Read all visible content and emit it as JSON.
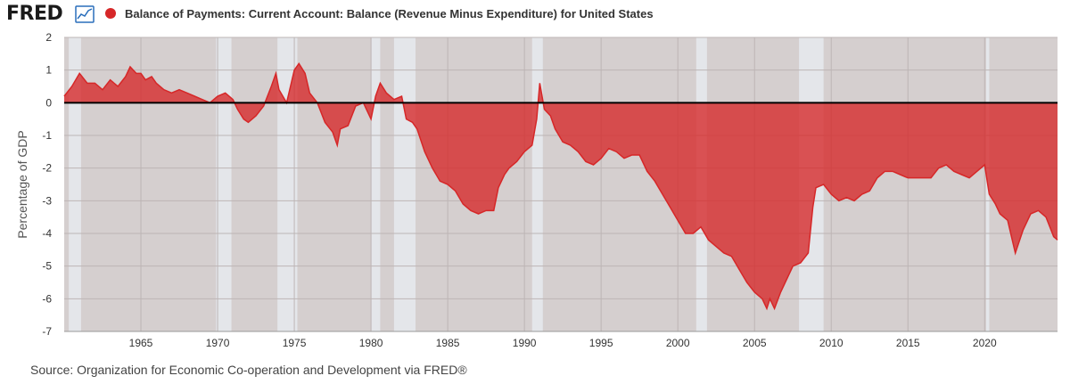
{
  "header": {
    "logo_text": "FRED",
    "logo_icon": "line-chart-icon",
    "series_title": "Balance of Payments: Current Account: Balance (Revenue Minus Expenditure) for United States"
  },
  "footer": {
    "source": "Source: Organization for Economic Co-operation and Development via FRED®"
  },
  "chart_data": {
    "type": "area",
    "title": "Balance of Payments: Current Account: Balance (Revenue Minus Expenditure) for United States",
    "xlabel": "",
    "ylabel": "Percentage of GDP",
    "xlim": [
      1960.0,
      2024.75
    ],
    "ylim": [
      -7,
      2
    ],
    "x_ticks": [
      1965,
      1970,
      1975,
      1980,
      1985,
      1990,
      1995,
      2000,
      2005,
      2010,
      2015,
      2020
    ],
    "y_ticks": [
      2,
      1,
      0,
      -1,
      -2,
      -3,
      -4,
      -5,
      -6,
      -7
    ],
    "grid": true,
    "colors": {
      "series": "#d62728",
      "recession": "#e4e6ea",
      "plot_bg": "#d5cfcf",
      "zero_line": "#000000"
    },
    "recessions": [
      [
        1960.3,
        1961.1
      ],
      [
        1969.9,
        1970.9
      ],
      [
        1973.9,
        1975.2
      ],
      [
        1980.0,
        1980.6
      ],
      [
        1981.5,
        1982.9
      ],
      [
        1990.5,
        1991.2
      ],
      [
        2001.2,
        2001.9
      ],
      [
        2007.9,
        2009.5
      ],
      [
        2020.1,
        2020.3
      ]
    ],
    "series": [
      {
        "name": "",
        "points": [
          [
            1960.0,
            0.2
          ],
          [
            1960.5,
            0.5
          ],
          [
            1961.0,
            0.9
          ],
          [
            1961.5,
            0.6
          ],
          [
            1962.0,
            0.6
          ],
          [
            1962.5,
            0.4
          ],
          [
            1963.0,
            0.7
          ],
          [
            1963.5,
            0.5
          ],
          [
            1964.0,
            0.8
          ],
          [
            1964.3,
            1.1
          ],
          [
            1964.7,
            0.9
          ],
          [
            1965.0,
            0.9
          ],
          [
            1965.3,
            0.7
          ],
          [
            1965.7,
            0.8
          ],
          [
            1966.0,
            0.6
          ],
          [
            1966.5,
            0.4
          ],
          [
            1967.0,
            0.3
          ],
          [
            1967.5,
            0.4
          ],
          [
            1968.0,
            0.3
          ],
          [
            1968.5,
            0.2
          ],
          [
            1969.0,
            0.1
          ],
          [
            1969.5,
            0.0
          ],
          [
            1970.0,
            0.2
          ],
          [
            1970.5,
            0.3
          ],
          [
            1971.0,
            0.1
          ],
          [
            1971.3,
            -0.2
          ],
          [
            1971.7,
            -0.5
          ],
          [
            1972.0,
            -0.6
          ],
          [
            1972.5,
            -0.4
          ],
          [
            1973.0,
            -0.1
          ],
          [
            1973.5,
            0.5
          ],
          [
            1973.8,
            0.9
          ],
          [
            1974.0,
            0.4
          ],
          [
            1974.5,
            0.0
          ],
          [
            1975.0,
            1.0
          ],
          [
            1975.3,
            1.2
          ],
          [
            1975.7,
            0.9
          ],
          [
            1976.0,
            0.3
          ],
          [
            1976.5,
            0.0
          ],
          [
            1977.0,
            -0.6
          ],
          [
            1977.5,
            -0.9
          ],
          [
            1977.8,
            -1.3
          ],
          [
            1978.0,
            -0.8
          ],
          [
            1978.5,
            -0.7
          ],
          [
            1979.0,
            -0.1
          ],
          [
            1979.5,
            0.0
          ],
          [
            1980.0,
            -0.5
          ],
          [
            1980.3,
            0.2
          ],
          [
            1980.6,
            0.6
          ],
          [
            1981.0,
            0.3
          ],
          [
            1981.5,
            0.1
          ],
          [
            1982.0,
            0.2
          ],
          [
            1982.3,
            -0.5
          ],
          [
            1982.7,
            -0.6
          ],
          [
            1983.0,
            -0.8
          ],
          [
            1983.5,
            -1.5
          ],
          [
            1984.0,
            -2.0
          ],
          [
            1984.5,
            -2.4
          ],
          [
            1985.0,
            -2.5
          ],
          [
            1985.5,
            -2.7
          ],
          [
            1986.0,
            -3.1
          ],
          [
            1986.5,
            -3.3
          ],
          [
            1987.0,
            -3.4
          ],
          [
            1987.5,
            -3.3
          ],
          [
            1988.0,
            -3.3
          ],
          [
            1988.3,
            -2.6
          ],
          [
            1988.7,
            -2.2
          ],
          [
            1989.0,
            -2.0
          ],
          [
            1989.5,
            -1.8
          ],
          [
            1990.0,
            -1.5
          ],
          [
            1990.5,
            -1.3
          ],
          [
            1990.8,
            -0.5
          ],
          [
            1991.0,
            0.6
          ],
          [
            1991.3,
            -0.2
          ],
          [
            1991.7,
            -0.4
          ],
          [
            1992.0,
            -0.8
          ],
          [
            1992.5,
            -1.2
          ],
          [
            1993.0,
            -1.3
          ],
          [
            1993.5,
            -1.5
          ],
          [
            1994.0,
            -1.8
          ],
          [
            1994.5,
            -1.9
          ],
          [
            1995.0,
            -1.7
          ],
          [
            1995.5,
            -1.4
          ],
          [
            1996.0,
            -1.5
          ],
          [
            1996.5,
            -1.7
          ],
          [
            1997.0,
            -1.6
          ],
          [
            1997.5,
            -1.6
          ],
          [
            1998.0,
            -2.1
          ],
          [
            1998.5,
            -2.4
          ],
          [
            1999.0,
            -2.8
          ],
          [
            1999.5,
            -3.2
          ],
          [
            2000.0,
            -3.6
          ],
          [
            2000.5,
            -4.0
          ],
          [
            2001.0,
            -4.0
          ],
          [
            2001.5,
            -3.8
          ],
          [
            2002.0,
            -4.2
          ],
          [
            2002.5,
            -4.4
          ],
          [
            2003.0,
            -4.6
          ],
          [
            2003.5,
            -4.7
          ],
          [
            2004.0,
            -5.1
          ],
          [
            2004.5,
            -5.5
          ],
          [
            2005.0,
            -5.8
          ],
          [
            2005.5,
            -6.0
          ],
          [
            2005.8,
            -6.3
          ],
          [
            2006.0,
            -6.0
          ],
          [
            2006.3,
            -6.3
          ],
          [
            2006.7,
            -5.8
          ],
          [
            2007.0,
            -5.5
          ],
          [
            2007.5,
            -5.0
          ],
          [
            2008.0,
            -4.9
          ],
          [
            2008.5,
            -4.6
          ],
          [
            2008.8,
            -3.2
          ],
          [
            2009.0,
            -2.6
          ],
          [
            2009.5,
            -2.5
          ],
          [
            2010.0,
            -2.8
          ],
          [
            2010.5,
            -3.0
          ],
          [
            2011.0,
            -2.9
          ],
          [
            2011.5,
            -3.0
          ],
          [
            2012.0,
            -2.8
          ],
          [
            2012.5,
            -2.7
          ],
          [
            2013.0,
            -2.3
          ],
          [
            2013.5,
            -2.1
          ],
          [
            2014.0,
            -2.1
          ],
          [
            2014.5,
            -2.2
          ],
          [
            2015.0,
            -2.3
          ],
          [
            2015.5,
            -2.3
          ],
          [
            2016.0,
            -2.3
          ],
          [
            2016.5,
            -2.3
          ],
          [
            2017.0,
            -2.0
          ],
          [
            2017.5,
            -1.9
          ],
          [
            2018.0,
            -2.1
          ],
          [
            2018.5,
            -2.2
          ],
          [
            2019.0,
            -2.3
          ],
          [
            2019.5,
            -2.1
          ],
          [
            2020.0,
            -1.9
          ],
          [
            2020.3,
            -2.8
          ],
          [
            2020.7,
            -3.1
          ],
          [
            2021.0,
            -3.4
          ],
          [
            2021.5,
            -3.6
          ],
          [
            2022.0,
            -4.6
          ],
          [
            2022.5,
            -3.9
          ],
          [
            2023.0,
            -3.4
          ],
          [
            2023.5,
            -3.3
          ],
          [
            2024.0,
            -3.5
          ],
          [
            2024.5,
            -4.1
          ],
          [
            2024.75,
            -4.2
          ]
        ]
      }
    ]
  }
}
